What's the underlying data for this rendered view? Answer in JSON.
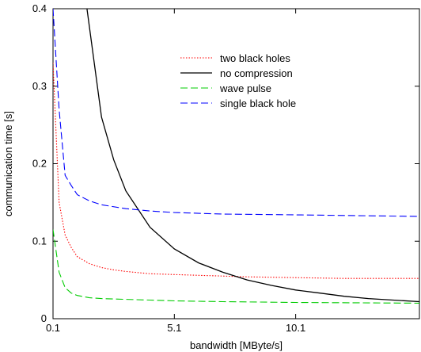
{
  "chart_data": {
    "type": "line",
    "title": "",
    "xlabel": "bandwidth [MByte/s]",
    "ylabel": "communication time [s]",
    "xlim": [
      0.1,
      15.2
    ],
    "ylim": [
      0,
      0.4
    ],
    "xticks": [
      0.1,
      5.1,
      10.1
    ],
    "xtick_labels": [
      "0.1",
      "5.1",
      "10.1"
    ],
    "yticks": [
      0,
      0.1,
      0.2,
      0.3,
      0.4
    ],
    "ytick_labels": [
      "0",
      "0.1",
      "0.2",
      "0.3",
      "0.4"
    ],
    "grid": false,
    "legend_position": "top-right",
    "series": [
      {
        "name": "two black holes",
        "color": "#ff0000",
        "dash": "dotted",
        "x": [
          0.1,
          0.35,
          0.6,
          0.85,
          1.1,
          1.6,
          2.1,
          2.6,
          3.1,
          4.1,
          5.1,
          6.1,
          7.1,
          8.1,
          10.1,
          12.1,
          15.2
        ],
        "y": [
          0.33,
          0.15,
          0.108,
          0.092,
          0.08,
          0.071,
          0.066,
          0.063,
          0.061,
          0.058,
          0.057,
          0.056,
          0.055,
          0.054,
          0.053,
          0.052,
          0.052
        ]
      },
      {
        "name": "no compression",
        "color": "#000000",
        "dash": "solid",
        "x": [
          1.5,
          2.1,
          2.6,
          3.1,
          4.1,
          5.1,
          6.1,
          7.1,
          8.1,
          9.1,
          10.1,
          11.1,
          12.1,
          13.1,
          14.1,
          15.2
        ],
        "y": [
          0.4,
          0.26,
          0.205,
          0.165,
          0.118,
          0.09,
          0.072,
          0.06,
          0.05,
          0.043,
          0.037,
          0.033,
          0.029,
          0.026,
          0.024,
          0.022
        ]
      },
      {
        "name": "wave pulse",
        "color": "#00cc00",
        "dash": "dashed",
        "x": [
          0.1,
          0.35,
          0.6,
          0.85,
          1.1,
          1.6,
          2.1,
          3.1,
          4.1,
          5.1,
          7.1,
          10.1,
          15.2
        ],
        "y": [
          0.115,
          0.06,
          0.04,
          0.033,
          0.03,
          0.027,
          0.026,
          0.025,
          0.024,
          0.023,
          0.022,
          0.021,
          0.02
        ]
      },
      {
        "name": "single black hole",
        "color": "#0000ff",
        "dash": "dashed",
        "x": [
          0.1,
          0.35,
          0.6,
          0.85,
          1.1,
          1.6,
          2.1,
          3.1,
          4.1,
          5.1,
          7.1,
          10.1,
          15.2
        ],
        "y": [
          0.4,
          0.27,
          0.185,
          0.172,
          0.16,
          0.152,
          0.147,
          0.142,
          0.139,
          0.137,
          0.135,
          0.134,
          0.132
        ]
      }
    ]
  }
}
